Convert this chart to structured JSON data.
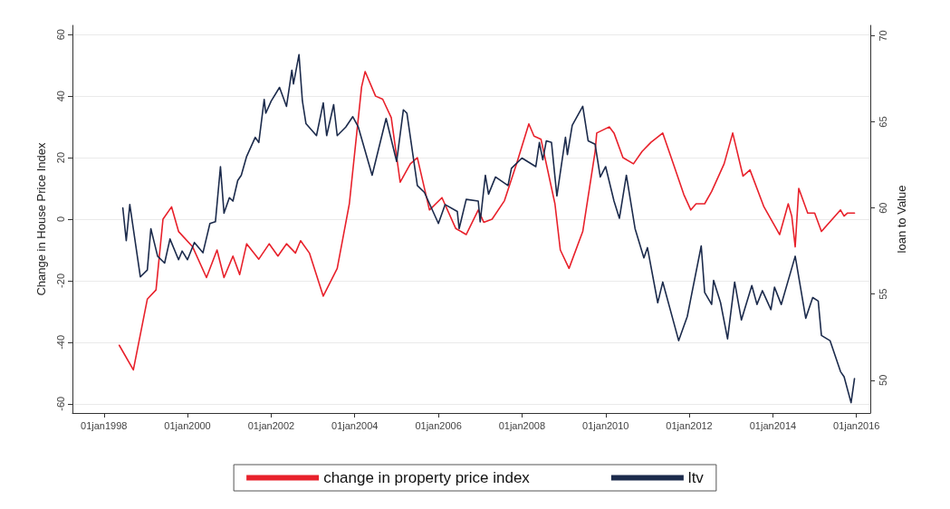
{
  "chart_data": {
    "type": "line",
    "ylabel": "Change in House Price Index",
    "y2label": "loan to Value",
    "xlim": [
      "1997-04",
      "2016-05"
    ],
    "xticks": [
      {
        "value": "1998-01-01",
        "label": "01jan1998"
      },
      {
        "value": "2000-01-01",
        "label": "01jan2000"
      },
      {
        "value": "2002-01-01",
        "label": "01jan2002"
      },
      {
        "value": "2004-01-01",
        "label": "01jan2004"
      },
      {
        "value": "2006-01-01",
        "label": "01jan2006"
      },
      {
        "value": "2008-01-01",
        "label": "01jan2008"
      },
      {
        "value": "2010-01-01",
        "label": "01jan2010"
      },
      {
        "value": "2012-01-01",
        "label": "01jan2012"
      },
      {
        "value": "2014-01-01",
        "label": "01jan2014"
      },
      {
        "value": "2016-01-01",
        "label": "01jan2016"
      }
    ],
    "ylim": [
      -63,
      63
    ],
    "yticks": [
      -60,
      -40,
      -20,
      0,
      20,
      40,
      60
    ],
    "y2lim": [
      48.1,
      70.6
    ],
    "y2ticks": [
      50,
      55,
      60,
      65,
      70
    ],
    "grid": "y",
    "legend": "bottom",
    "marker": "none",
    "line_style": "solid",
    "series": [
      {
        "name": "change in property price index",
        "color": "#e8212b",
        "x": [
          "1998-05-15",
          "1998-09-15",
          "1999-01-15",
          "1999-04-01",
          "1999-06-01",
          "1999-08-15",
          "1999-10-15",
          "2000-02-15",
          "2000-06-15",
          "2000-09-15",
          "2000-11-15",
          "2001-02-01",
          "2001-04-01",
          "2001-06-01",
          "2001-09-15",
          "2001-12-15",
          "2002-03-01",
          "2002-05-15",
          "2002-08-01",
          "2002-09-15",
          "2002-12-01",
          "2003-04-01",
          "2003-08-01",
          "2003-11-15",
          "2004-03-01",
          "2004-04-01",
          "2004-07-01",
          "2004-09-01",
          "2004-11-15",
          "2005-02-01",
          "2005-05-01",
          "2005-07-01",
          "2005-10-15",
          "2006-02-01",
          "2006-06-01",
          "2006-09-01",
          "2006-12-15",
          "2007-02-01",
          "2007-04-15",
          "2007-08-01",
          "2007-11-15",
          "2008-03-01",
          "2008-04-15",
          "2008-06-15",
          "2008-10-15",
          "2008-12-01",
          "2009-02-15",
          "2009-06-15",
          "2009-10-01",
          "2009-10-15",
          "2010-02-01",
          "2010-03-15",
          "2010-06-01",
          "2010-09-01",
          "2010-11-15",
          "2011-02-01",
          "2011-05-15",
          "2011-08-15",
          "2011-11-15",
          "2012-01-15",
          "2012-03-01",
          "2012-05-15",
          "2012-07-15",
          "2012-11-01",
          "2013-01-15",
          "2013-04-15",
          "2013-06-15",
          "2013-10-15",
          "2014-03-01",
          "2014-05-15",
          "2014-06-15",
          "2014-07-15",
          "2014-08-15",
          "2014-11-01",
          "2015-01-01",
          "2015-03-01",
          "2015-08-15",
          "2015-09-15",
          "2015-10-15",
          "2015-12-15"
        ],
        "values": [
          -41,
          -49,
          -26,
          -23,
          0,
          4,
          -4,
          -9,
          -19,
          -10,
          -19,
          -12,
          -18,
          -8,
          -13,
          -8,
          -12,
          -8,
          -11,
          -7,
          -11,
          -25,
          -16,
          5,
          43,
          48,
          40,
          39,
          33,
          12,
          18,
          20,
          3,
          7,
          -3,
          -5,
          3,
          -1,
          0,
          6,
          18,
          31,
          27,
          26,
          5,
          -10,
          -16,
          -4,
          22,
          28,
          30,
          28,
          20,
          18,
          22,
          25,
          28,
          18,
          8,
          3,
          5,
          5,
          9,
          18,
          28,
          14,
          16,
          4,
          -5,
          5,
          1,
          -9,
          10,
          2,
          2,
          -4,
          3,
          1,
          2,
          2
        ]
      },
      {
        "name": "ltv",
        "color": "#1c2b4c",
        "axis": "y2",
        "x": [
          "1998-06-15",
          "1998-07-15",
          "1998-08-15",
          "1998-11-15",
          "1999-01-15",
          "1999-02-15",
          "1999-04-15",
          "1999-06-15",
          "1999-08-01",
          "1999-10-15",
          "1999-11-15",
          "2000-01-01",
          "2000-03-01",
          "2000-05-15",
          "2000-07-15",
          "2000-09-01",
          "2000-10-15",
          "2000-11-15",
          "2001-01-01",
          "2001-02-01",
          "2001-03-15",
          "2001-04-15",
          "2001-06-01",
          "2001-08-15",
          "2001-09-15",
          "2001-11-01",
          "2001-11-15",
          "2002-01-01",
          "2002-03-15",
          "2002-05-15",
          "2002-07-01",
          "2002-07-15",
          "2002-09-01",
          "2002-10-01",
          "2002-11-01",
          "2003-02-01",
          "2003-04-01",
          "2003-05-01",
          "2003-07-01",
          "2003-08-01",
          "2003-10-15",
          "2003-12-15",
          "2004-02-01",
          "2004-06-01",
          "2004-10-01",
          "2005-01-01",
          "2005-03-01",
          "2005-04-01",
          "2005-07-01",
          "2005-09-01",
          "2006-01-01",
          "2006-03-01",
          "2006-06-15",
          "2006-07-01",
          "2006-09-01",
          "2006-12-15",
          "2007-01-01",
          "2007-02-15",
          "2007-03-15",
          "2007-05-15",
          "2007-09-01",
          "2007-10-01",
          "2008-01-01",
          "2008-05-01",
          "2008-06-01",
          "2008-07-01",
          "2008-08-01",
          "2008-09-15",
          "2008-11-01",
          "2009-01-15",
          "2009-02-01",
          "2009-03-15",
          "2009-06-15",
          "2009-08-01",
          "2009-10-01",
          "2009-11-15",
          "2010-01-01",
          "2010-03-15",
          "2010-05-01",
          "2010-07-01",
          "2010-09-15",
          "2010-12-01",
          "2011-01-01",
          "2011-04-01",
          "2011-05-15",
          "2011-10-01",
          "2011-12-15",
          "2012-04-15",
          "2012-05-15",
          "2012-07-15",
          "2012-08-01",
          "2012-10-01",
          "2012-12-01",
          "2013-02-01",
          "2013-04-01",
          "2013-07-01",
          "2013-08-15",
          "2013-10-01",
          "2013-12-15",
          "2014-01-15",
          "2014-03-15",
          "2014-07-15",
          "2014-10-15",
          "2014-12-15",
          "2015-02-01",
          "2015-03-01",
          "2015-05-15",
          "2015-08-15",
          "2015-09-15",
          "2015-11-15",
          "2015-12-15"
        ],
        "values": [
          60,
          58.1,
          60.2,
          56,
          56.4,
          58.8,
          57.2,
          56.8,
          58.2,
          57,
          57.5,
          57,
          58,
          57.4,
          59.1,
          59.2,
          62.4,
          59.7,
          60.6,
          60.4,
          61.6,
          61.9,
          63,
          64.1,
          63.8,
          66.3,
          65.5,
          66.2,
          67,
          65.9,
          68,
          67.2,
          68.9,
          66.2,
          64.9,
          64.2,
          66.1,
          64.2,
          66,
          64.2,
          64.7,
          65.3,
          64.7,
          61.9,
          65.2,
          62.7,
          65.7,
          65.5,
          61.3,
          60.9,
          59.1,
          60.2,
          59.8,
          58.8,
          60.5,
          60.4,
          59.2,
          61.9,
          60.8,
          61.8,
          61.3,
          62.3,
          62.9,
          62.4,
          63.8,
          62.8,
          63.9,
          63.8,
          60.7,
          64.1,
          63.1,
          64.8,
          65.9,
          63.9,
          63.7,
          61.8,
          62.4,
          60.4,
          59.4,
          61.9,
          58.8,
          57.1,
          57.7,
          54.5,
          55.7,
          52.3,
          53.7,
          57.8,
          55.1,
          54.4,
          55.8,
          54.5,
          52.4,
          55.7,
          53.5,
          55.5,
          54.4,
          55.2,
          54.1,
          55.4,
          54.4,
          57.2,
          53.6,
          54.8,
          54.6,
          52.6,
          52.3,
          50.5,
          50.2,
          48.7,
          50.1
        ]
      }
    ]
  }
}
